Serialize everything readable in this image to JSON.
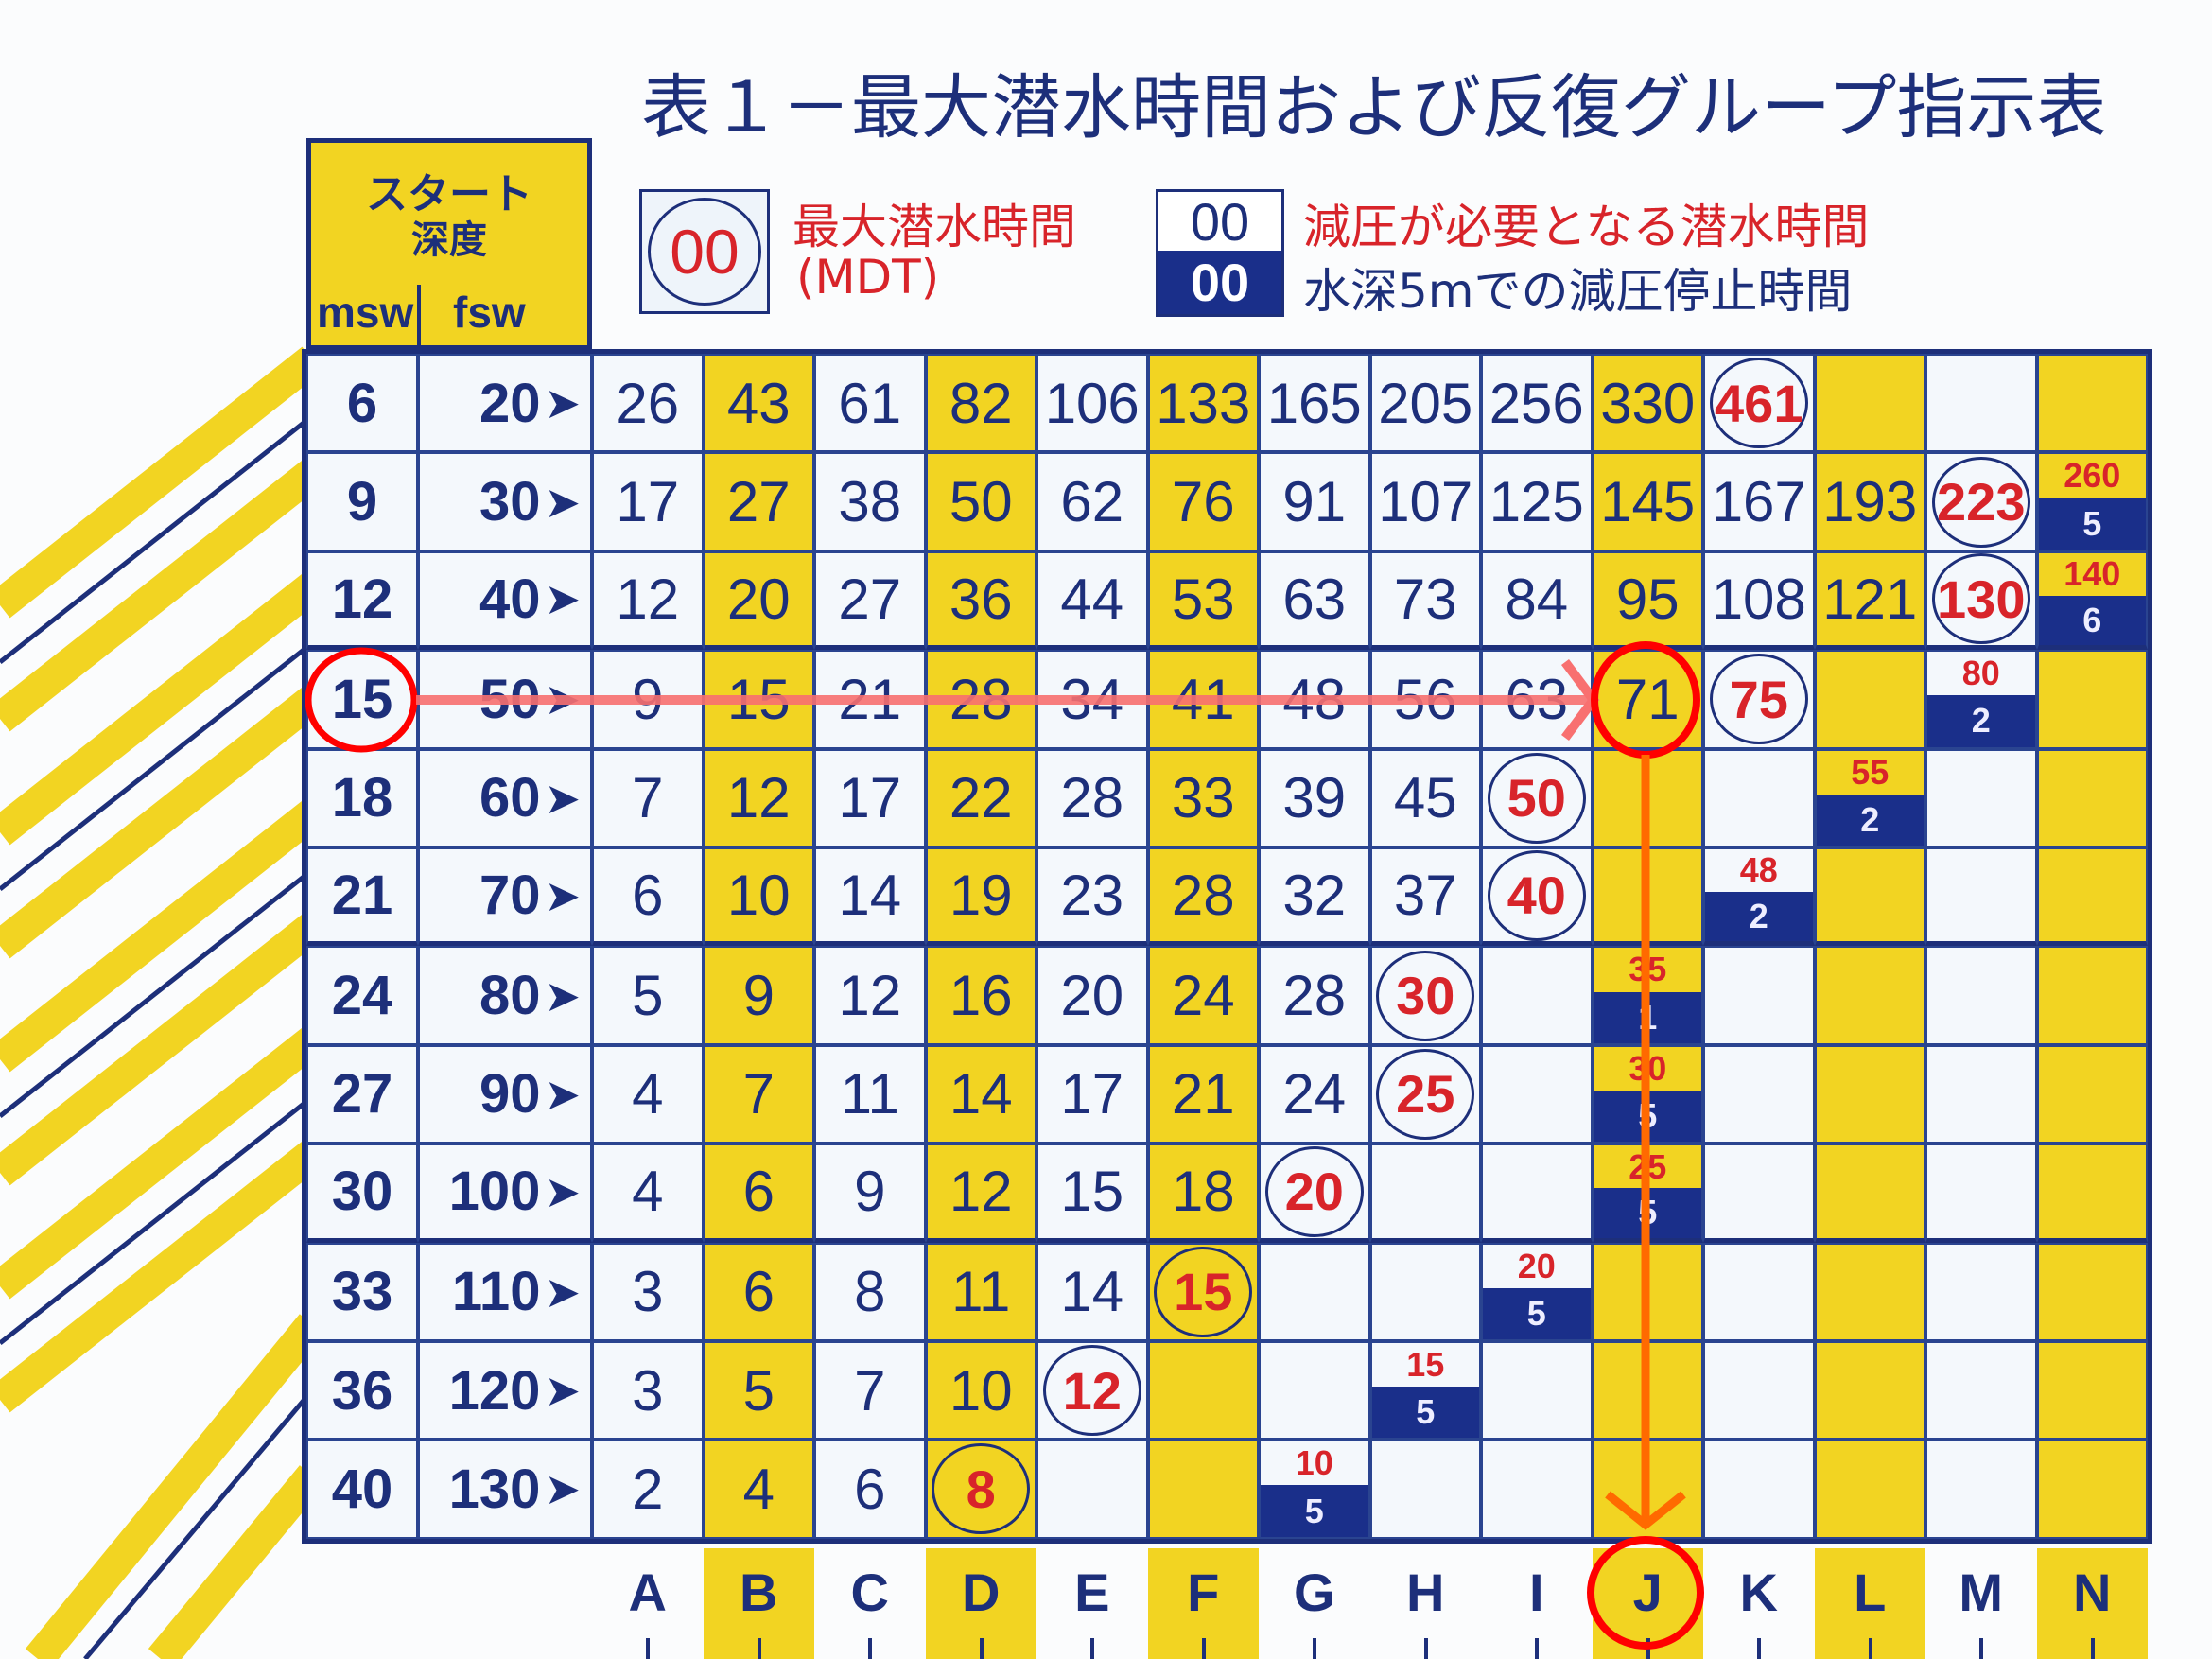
{
  "title": "表１－最大潜水時間および反復グループ指示表",
  "start_depth": {
    "line1": "スタート",
    "line2": "深度",
    "msw": "msw",
    "fsw": "fsw"
  },
  "legend": {
    "mdt_sample": "00",
    "mdt_label": "最大潜水時間",
    "mdt_abbr": "(MDT)",
    "deco_sample_top": "00",
    "deco_sample_bottom": "00",
    "deco_label_top": "減圧が必要となる潜水時間",
    "deco_label_bottom": "水深5mでの減圧停止時間"
  },
  "colors": {
    "navy": "#1d2f7a",
    "yellow": "#f2d422",
    "red": "#d8242a",
    "annotation_red": "#ff0000",
    "annotation_orange": "#ff6a00"
  },
  "columns": [
    "A",
    "B",
    "C",
    "D",
    "E",
    "F",
    "G",
    "H",
    "I",
    "J",
    "K",
    "L",
    "M",
    "N"
  ],
  "yellow_columns": [
    "B",
    "D",
    "F",
    "J",
    "L",
    "N"
  ],
  "rows": [
    {
      "msw": "6",
      "fsw": "20",
      "cells": [
        "26",
        "43",
        "61",
        "82",
        "106",
        "133",
        "165",
        "205",
        "256",
        "330",
        {
          "mdt": "461"
        },
        "",
        "",
        ""
      ]
    },
    {
      "msw": "9",
      "fsw": "30",
      "cells": [
        "17",
        "27",
        "38",
        "50",
        "62",
        "76",
        "91",
        "107",
        "125",
        "145",
        "167",
        "193",
        {
          "mdt": "223"
        },
        {
          "limit": "260",
          "stop": "5"
        }
      ]
    },
    {
      "msw": "12",
      "fsw": "40",
      "cells": [
        "12",
        "20",
        "27",
        "36",
        "44",
        "53",
        "63",
        "73",
        "84",
        "95",
        "108",
        "121",
        {
          "mdt": "130"
        },
        {
          "limit": "140",
          "stop": "6"
        }
      ]
    },
    {
      "msw": "15",
      "fsw": "50",
      "cells": [
        "9",
        "15",
        "21",
        "28",
        "34",
        "41",
        "48",
        "56",
        "63",
        "71",
        {
          "mdt": "75"
        },
        "",
        {
          "limit": "80",
          "stop": "2"
        },
        ""
      ]
    },
    {
      "msw": "18",
      "fsw": "60",
      "cells": [
        "7",
        "12",
        "17",
        "22",
        "28",
        "33",
        "39",
        "45",
        {
          "mdt": "50"
        },
        "",
        "",
        {
          "limit": "55",
          "stop": "2"
        },
        "",
        ""
      ]
    },
    {
      "msw": "21",
      "fsw": "70",
      "cells": [
        "6",
        "10",
        "14",
        "19",
        "23",
        "28",
        "32",
        "37",
        {
          "mdt": "40"
        },
        "",
        {
          "limit": "48",
          "stop": "2"
        },
        "",
        "",
        ""
      ]
    },
    {
      "msw": "24",
      "fsw": "80",
      "cells": [
        "5",
        "9",
        "12",
        "16",
        "20",
        "24",
        "28",
        {
          "mdt": "30"
        },
        "",
        {
          "limit": "35",
          "stop": "1"
        },
        "",
        "",
        "",
        ""
      ]
    },
    {
      "msw": "27",
      "fsw": "90",
      "cells": [
        "4",
        "7",
        "11",
        "14",
        "17",
        "21",
        "24",
        {
          "mdt": "25"
        },
        "",
        {
          "limit": "30",
          "stop": "5"
        },
        "",
        "",
        "",
        ""
      ]
    },
    {
      "msw": "30",
      "fsw": "100",
      "cells": [
        "4",
        "6",
        "9",
        "12",
        "15",
        "18",
        {
          "mdt": "20"
        },
        "",
        "",
        {
          "limit": "25",
          "stop": "5"
        },
        "",
        "",
        "",
        ""
      ]
    },
    {
      "msw": "33",
      "fsw": "110",
      "cells": [
        "3",
        "6",
        "8",
        "11",
        "14",
        {
          "mdt": "15"
        },
        "",
        "",
        {
          "limit": "20",
          "stop": "5"
        },
        "",
        "",
        "",
        "",
        ""
      ]
    },
    {
      "msw": "36",
      "fsw": "120",
      "cells": [
        "3",
        "5",
        "7",
        "10",
        {
          "mdt": "12"
        },
        "",
        "",
        {
          "limit": "15",
          "stop": "5"
        },
        "",
        "",
        "",
        "",
        "",
        ""
      ]
    },
    {
      "msw": "40",
      "fsw": "130",
      "cells": [
        "2",
        "4",
        "6",
        {
          "mdt": "8"
        },
        "",
        "",
        {
          "limit": "10",
          "stop": "5"
        },
        "",
        "",
        "",
        "",
        "",
        "",
        ""
      ]
    }
  ],
  "annotation": {
    "start_msw": "15",
    "result_cell": "71",
    "result_group": "J"
  }
}
